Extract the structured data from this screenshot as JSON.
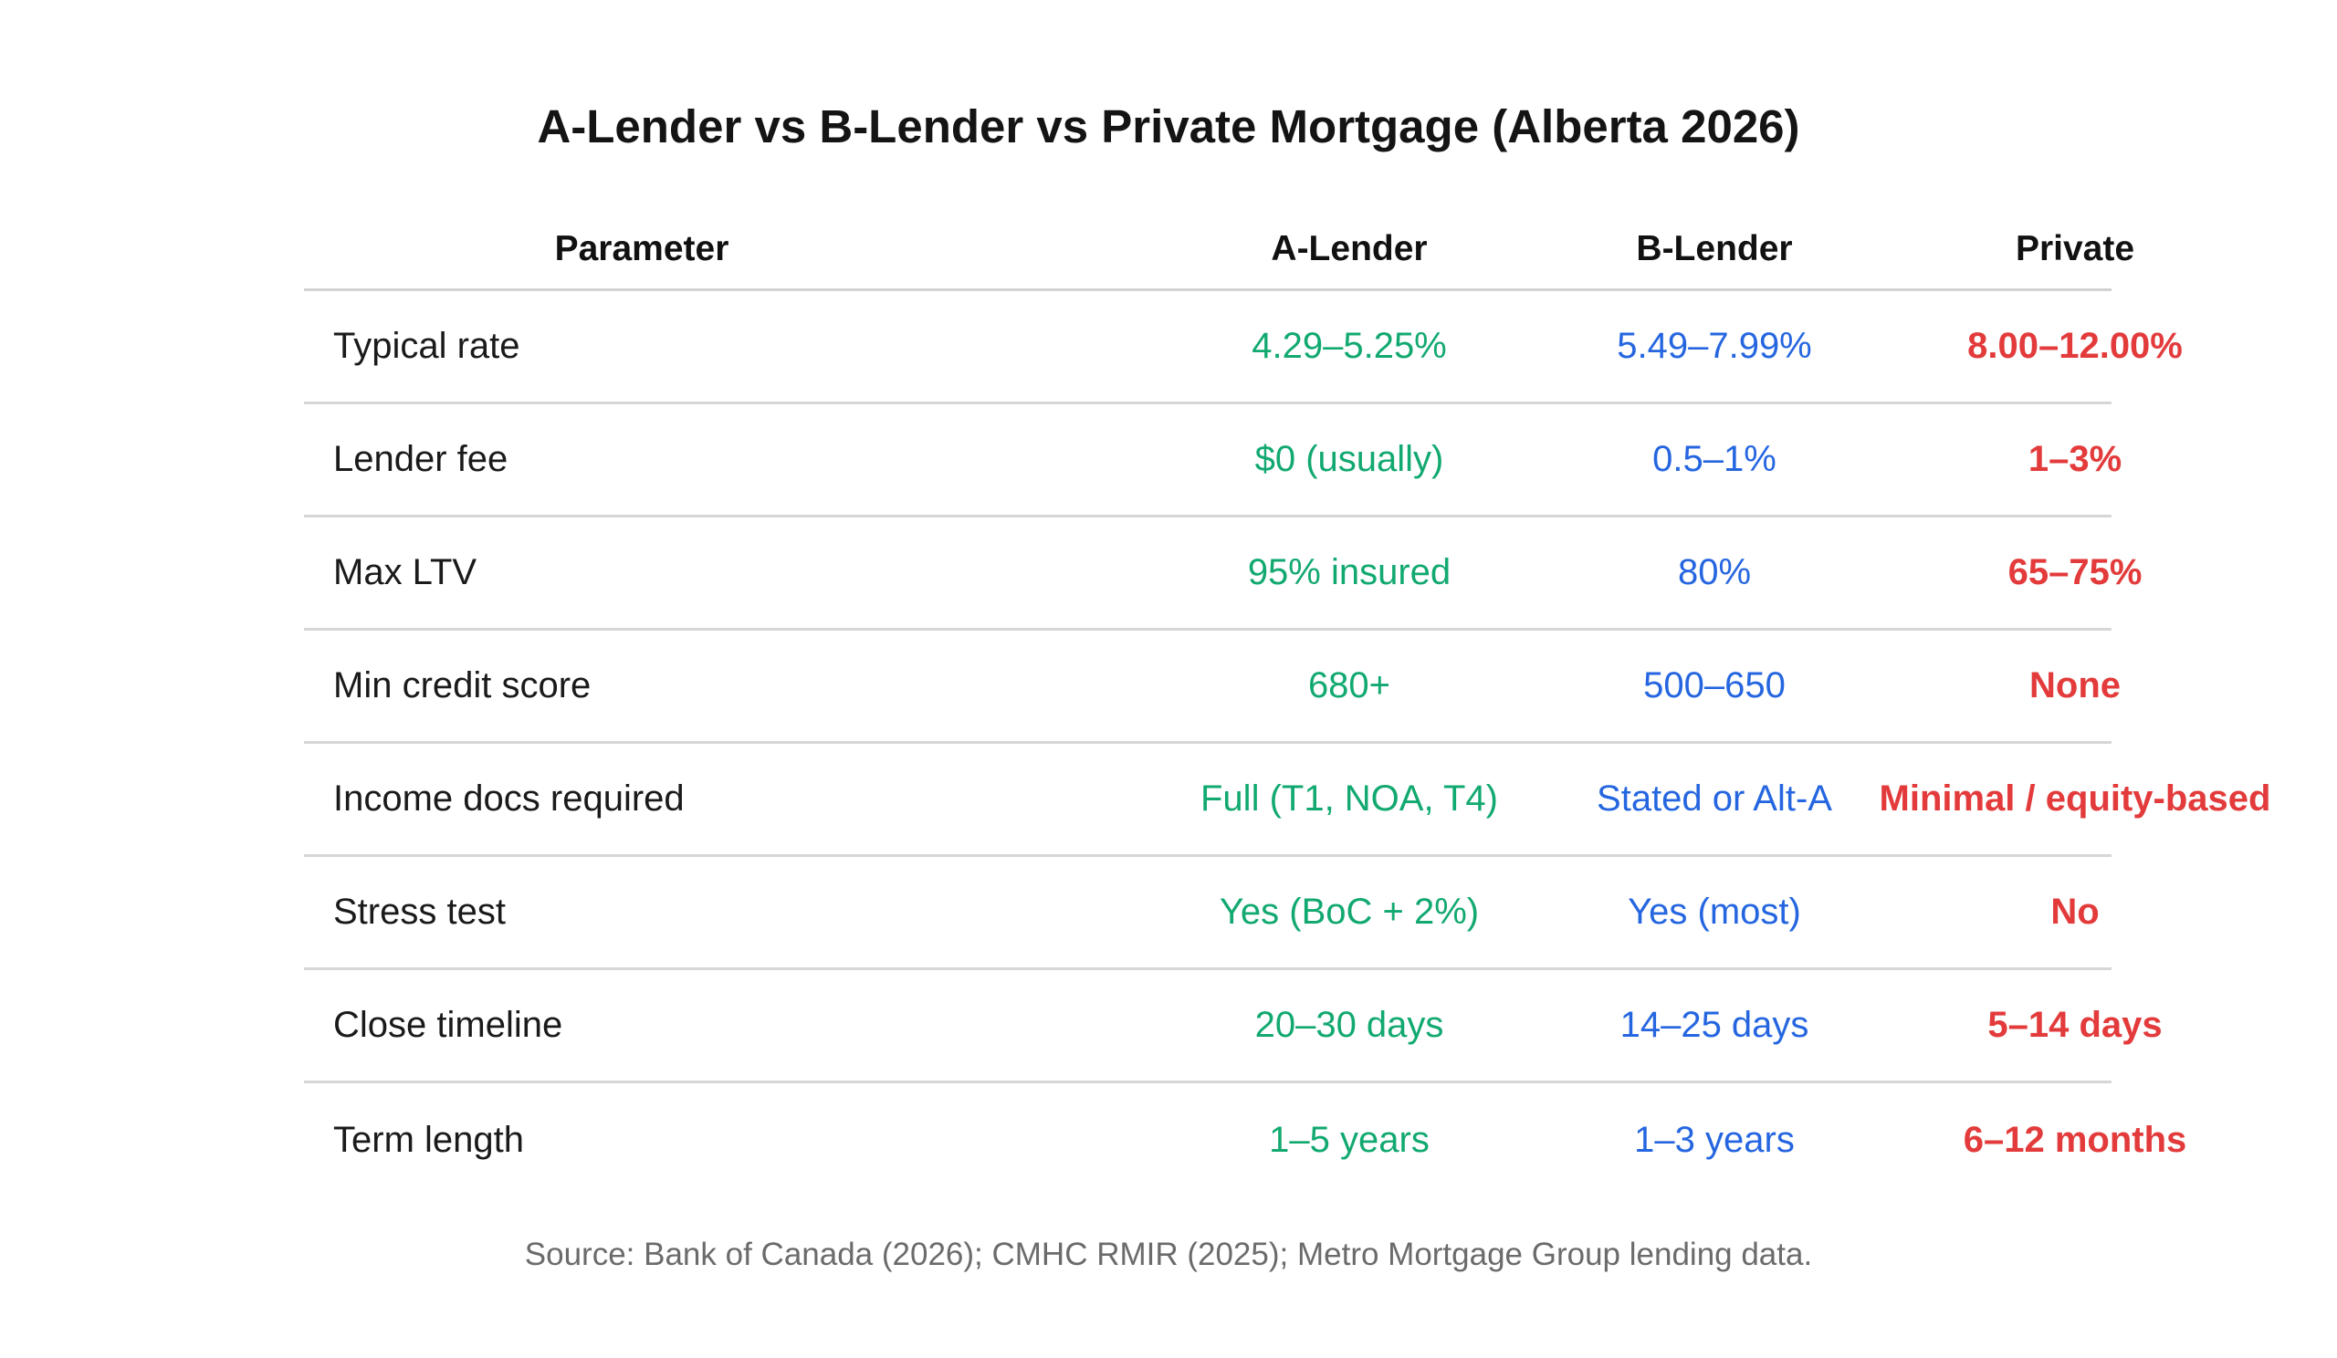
{
  "title": "A-Lender vs B-Lender vs Private Mortgage (Alberta 2026)",
  "table": {
    "headers": [
      "Parameter",
      "A-Lender",
      "B-Lender",
      "Private"
    ],
    "rows": [
      [
        "Typical rate",
        "4.29–5.25%",
        "5.49–7.99%",
        "8.00–12.00%"
      ],
      [
        "Lender fee",
        "$0 (usually)",
        "0.5–1%",
        "1–3%"
      ],
      [
        "Max LTV",
        "95% insured",
        "80%",
        "65–75%"
      ],
      [
        "Min credit score",
        "680+",
        "500–650",
        "None"
      ],
      [
        "Income docs required",
        "Full (T1, NOA, T4)",
        "Stated or Alt-A",
        "Minimal / equity-based"
      ],
      [
        "Stress test",
        "Yes (BoC + 2%)",
        "Yes (most)",
        "No"
      ],
      [
        "Close timeline",
        "20–30 days",
        "14–25 days",
        "5–14 days"
      ],
      [
        "Term length",
        "1–5 years",
        "1–3 years",
        "6–12 months"
      ]
    ]
  },
  "colors": {
    "a_lender": "#12a970",
    "b_lender": "#2566e0",
    "private": "#e33b3b"
  },
  "source": "Source: Bank of Canada (2026); CMHC RMIR (2025); Metro Mortgage Group lending data."
}
